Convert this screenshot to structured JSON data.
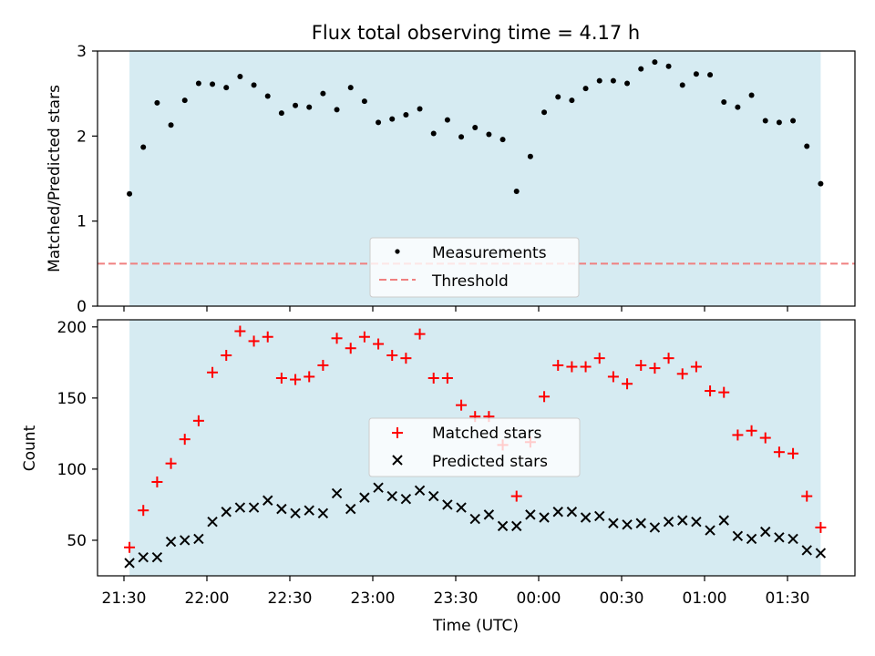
{
  "chart_data": [
    {
      "type": "scatter",
      "title": "Flux total observing time = 4.17 h",
      "ylabel": "Matched/Predicted stars",
      "ylim": [
        0,
        3
      ],
      "yticks": [
        0,
        1,
        2,
        3
      ],
      "grid": false,
      "legend_placement": "lower-center",
      "observing_window": [
        "21:32",
        "01:42"
      ],
      "series": [
        {
          "name": "Measurements",
          "marker": "dot",
          "color": "#000000",
          "x": [
            "21:32",
            "21:37",
            "21:42",
            "21:47",
            "21:52",
            "21:57",
            "22:02",
            "22:07",
            "22:12",
            "22:17",
            "22:22",
            "22:27",
            "22:32",
            "22:37",
            "22:42",
            "22:47",
            "22:52",
            "22:57",
            "23:02",
            "23:07",
            "23:12",
            "23:17",
            "23:22",
            "23:27",
            "23:32",
            "23:37",
            "23:42",
            "23:47",
            "23:52",
            "23:57",
            "00:02",
            "00:07",
            "00:12",
            "00:17",
            "00:22",
            "00:27",
            "00:32",
            "00:37",
            "00:42",
            "00:47",
            "00:52",
            "00:57",
            "01:02",
            "01:07",
            "01:12",
            "01:17",
            "01:22",
            "01:27",
            "01:32",
            "01:37",
            "01:42"
          ],
          "y": [
            1.32,
            1.87,
            2.39,
            2.13,
            2.42,
            2.62,
            2.61,
            2.57,
            2.7,
            2.6,
            2.47,
            2.27,
            2.36,
            2.34,
            2.5,
            2.31,
            2.57,
            2.41,
            2.16,
            2.2,
            2.25,
            2.32,
            2.03,
            2.19,
            1.99,
            2.1,
            2.02,
            1.96,
            1.35,
            1.76,
            2.28,
            2.46,
            2.42,
            2.56,
            2.65,
            2.65,
            2.62,
            2.79,
            2.87,
            2.82,
            2.6,
            2.73,
            2.72,
            2.4,
            2.34,
            2.48,
            2.18,
            2.16,
            2.18,
            1.88,
            1.44
          ]
        },
        {
          "name": "Threshold",
          "marker": "dashed-line",
          "color": "#f08080",
          "value": 0.5
        }
      ]
    },
    {
      "type": "scatter",
      "xlabel": "Time (UTC)",
      "ylabel": "Count",
      "ylim": [
        25,
        205
      ],
      "yticks": [
        50,
        100,
        150,
        200
      ],
      "xticks": [
        "21:30",
        "22:00",
        "22:30",
        "23:00",
        "23:30",
        "00:00",
        "00:30",
        "01:00",
        "01:30"
      ],
      "grid": false,
      "legend_placement": "center",
      "observing_window": [
        "21:32",
        "01:42"
      ],
      "series": [
        {
          "name": "Matched stars",
          "marker": "plus",
          "color": "#ff0000",
          "x": [
            "21:32",
            "21:37",
            "21:42",
            "21:47",
            "21:52",
            "21:57",
            "22:02",
            "22:07",
            "22:12",
            "22:17",
            "22:22",
            "22:27",
            "22:32",
            "22:37",
            "22:42",
            "22:47",
            "22:52",
            "22:57",
            "23:02",
            "23:07",
            "23:12",
            "23:17",
            "23:22",
            "23:27",
            "23:32",
            "23:37",
            "23:42",
            "23:47",
            "23:52",
            "23:57",
            "00:02",
            "00:07",
            "00:12",
            "00:17",
            "00:22",
            "00:27",
            "00:32",
            "00:37",
            "00:42",
            "00:47",
            "00:52",
            "00:57",
            "01:02",
            "01:07",
            "01:12",
            "01:17",
            "01:22",
            "01:27",
            "01:32",
            "01:37",
            "01:42"
          ],
          "y": [
            45,
            71,
            91,
            104,
            121,
            134,
            168,
            180,
            197,
            190,
            193,
            164,
            163,
            165,
            173,
            192,
            185,
            193,
            188,
            180,
            178,
            195,
            164,
            164,
            145,
            137,
            137,
            117,
            81,
            119,
            151,
            173,
            172,
            172,
            178,
            165,
            160,
            173,
            171,
            178,
            167,
            172,
            155,
            154,
            124,
            127,
            122,
            112,
            111,
            81,
            59
          ]
        },
        {
          "name": "Predicted stars",
          "marker": "x",
          "color": "#000000",
          "x": [
            "21:32",
            "21:37",
            "21:42",
            "21:47",
            "21:52",
            "21:57",
            "22:02",
            "22:07",
            "22:12",
            "22:17",
            "22:22",
            "22:27",
            "22:32",
            "22:37",
            "22:42",
            "22:47",
            "22:52",
            "22:57",
            "23:02",
            "23:07",
            "23:12",
            "23:17",
            "23:22",
            "23:27",
            "23:32",
            "23:37",
            "23:42",
            "23:47",
            "23:52",
            "23:57",
            "00:02",
            "00:07",
            "00:12",
            "00:17",
            "00:22",
            "00:27",
            "00:32",
            "00:37",
            "00:42",
            "00:47",
            "00:52",
            "00:57",
            "01:02",
            "01:07",
            "01:12",
            "01:17",
            "01:22",
            "01:27",
            "01:32",
            "01:37",
            "01:42"
          ],
          "y": [
            34,
            38,
            38,
            49,
            50,
            51,
            63,
            70,
            73,
            73,
            78,
            72,
            69,
            71,
            69,
            83,
            72,
            80,
            87,
            81,
            79,
            85,
            81,
            75,
            73,
            65,
            68,
            60,
            60,
            68,
            66,
            70,
            70,
            66,
            67,
            62,
            61,
            62,
            59,
            63,
            64,
            63,
            57,
            64,
            53,
            51,
            56,
            52,
            51,
            43,
            41
          ]
        }
      ]
    }
  ]
}
